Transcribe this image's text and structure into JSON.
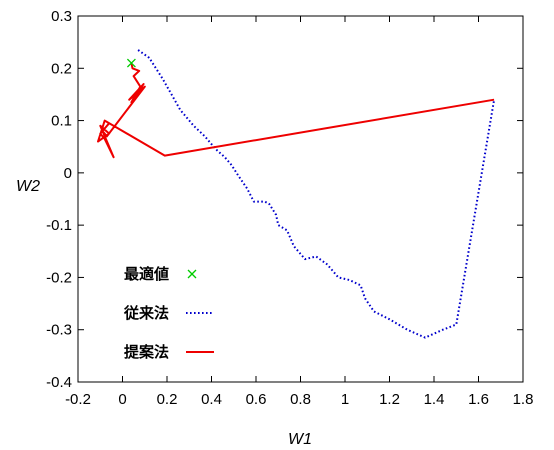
{
  "chart_data": {
    "type": "line",
    "xlabel": "W1",
    "ylabel": "W2",
    "xlim": [
      -0.2,
      1.8
    ],
    "ylim": [
      -0.4,
      0.3
    ],
    "xticks": [
      -0.2,
      0,
      0.2,
      0.4,
      0.6,
      0.8,
      1,
      1.2,
      1.4,
      1.6,
      1.8
    ],
    "yticks": [
      0.3,
      0.2,
      0.1,
      0,
      -0.1,
      -0.2,
      -0.3,
      -0.4
    ],
    "xtick_labels": [
      "-0.2",
      "0",
      "0.2",
      "0.4",
      "0.6",
      "0.8",
      "1",
      "1.2",
      "1.4",
      "1.6",
      "1.8"
    ],
    "ytick_labels": [
      "0.3",
      "0.2",
      "0.1",
      "0",
      "-0.1",
      "-0.2",
      "-0.3",
      "-0.4"
    ],
    "grid": false,
    "legend_position": "bottom-left",
    "series": [
      {
        "name": "最適値",
        "style": "marker-x",
        "color": "#00cc00",
        "points": [
          [
            0.04,
            0.21
          ]
        ]
      },
      {
        "name": "従来法",
        "style": "dotted",
        "color": "#0000cc",
        "points": [
          [
            0.07,
            0.235
          ],
          [
            0.12,
            0.22
          ],
          [
            0.18,
            0.18
          ],
          [
            0.26,
            0.12
          ],
          [
            0.32,
            0.09
          ],
          [
            0.37,
            0.07
          ],
          [
            0.42,
            0.045
          ],
          [
            0.46,
            0.03
          ],
          [
            0.49,
            0.015
          ],
          [
            0.52,
            -0.005
          ],
          [
            0.56,
            -0.03
          ],
          [
            0.59,
            -0.055
          ],
          [
            0.64,
            -0.055
          ],
          [
            0.66,
            -0.06
          ],
          [
            0.69,
            -0.08
          ],
          [
            0.7,
            -0.1
          ],
          [
            0.74,
            -0.11
          ],
          [
            0.77,
            -0.14
          ],
          [
            0.8,
            -0.155
          ],
          [
            0.82,
            -0.165
          ],
          [
            0.87,
            -0.16
          ],
          [
            0.92,
            -0.175
          ],
          [
            0.97,
            -0.2
          ],
          [
            1.02,
            -0.205
          ],
          [
            1.07,
            -0.215
          ],
          [
            1.09,
            -0.24
          ],
          [
            1.13,
            -0.265
          ],
          [
            1.2,
            -0.28
          ],
          [
            1.28,
            -0.3
          ],
          [
            1.36,
            -0.315
          ],
          [
            1.44,
            -0.3
          ],
          [
            1.5,
            -0.29
          ],
          [
            1.67,
            0.14
          ]
        ]
      },
      {
        "name": "提案法",
        "style": "solid",
        "color": "#ee0000",
        "points": [
          [
            1.67,
            0.14
          ],
          [
            0.19,
            0.033
          ],
          [
            -0.08,
            0.1
          ],
          [
            -0.11,
            0.06
          ],
          [
            -0.06,
            0.075
          ],
          [
            -0.1,
            0.09
          ],
          [
            -0.04,
            0.03
          ],
          [
            -0.08,
            0.065
          ],
          [
            -0.1,
            0.075
          ],
          [
            -0.06,
            0.095
          ],
          [
            -0.09,
            0.08
          ],
          [
            -0.07,
            0.07
          ],
          [
            0.1,
            0.165
          ],
          [
            0.03,
            0.14
          ],
          [
            0.095,
            0.17
          ],
          [
            0.04,
            0.135
          ],
          [
            0.08,
            0.165
          ],
          [
            0.05,
            0.185
          ],
          [
            0.075,
            0.195
          ],
          [
            0.045,
            0.2
          ],
          [
            0.04,
            0.21
          ]
        ]
      }
    ]
  }
}
